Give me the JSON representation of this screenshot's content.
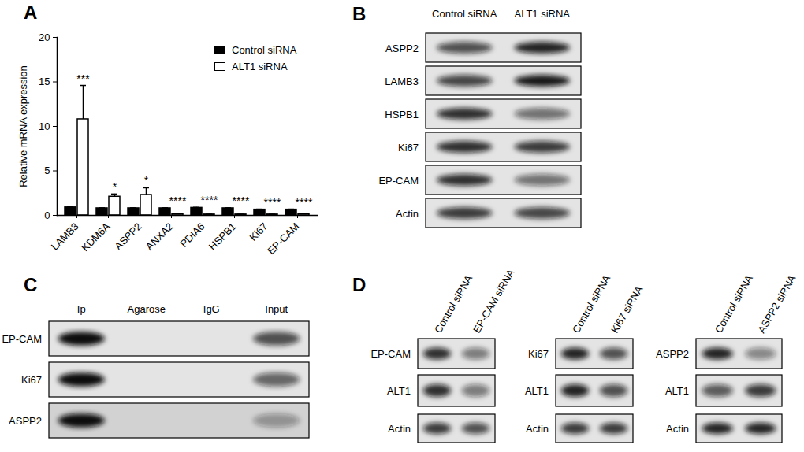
{
  "chart_data": {
    "type": "bar",
    "title": "A",
    "categories": [
      "LAMB3",
      "KDM6A",
      "ASPP2",
      "ANXA2",
      "PDIA6",
      "HSPB1",
      "Ki67",
      "EP-CAM"
    ],
    "series": [
      {
        "name": "Control siRNA",
        "color": "#000000",
        "values": [
          0.9,
          0.8,
          0.8,
          0.8,
          0.85,
          0.8,
          0.65,
          0.65
        ],
        "errors": [
          0.05,
          0.05,
          0.05,
          0.05,
          0.05,
          0.05,
          0.05,
          0.05
        ]
      },
      {
        "name": "ALT1 siRNA",
        "color": "#ffffff",
        "values": [
          10.8,
          2.1,
          2.3,
          0.15,
          0.1,
          0.1,
          0.1,
          0.15
        ],
        "errors": [
          3.8,
          0.3,
          0.8,
          0.03,
          0.02,
          0.02,
          0.02,
          0.03
        ]
      }
    ],
    "annotations": [
      "***",
      "*",
      "*",
      "****",
      "****",
      "****",
      "****",
      "****"
    ],
    "y_label": "Relative mRNA expression",
    "ylim": [
      0,
      20
    ],
    "yticks": [
      0,
      5,
      10,
      15,
      20
    ],
    "legend": "top-right"
  },
  "blots": {
    "B": {
      "panel": "B",
      "lanes": [
        "Control siRNA",
        "ALT1 siRNA"
      ],
      "rows": [
        {
          "label": "ASPP2",
          "bands": [
            0.7,
            0.9
          ]
        },
        {
          "label": "LAMB3",
          "bands": [
            0.75,
            0.95
          ]
        },
        {
          "label": "HSPB1",
          "bands": [
            0.85,
            0.55
          ]
        },
        {
          "label": "Ki67",
          "bands": [
            0.85,
            0.8
          ]
        },
        {
          "label": "EP-CAM",
          "bands": [
            0.85,
            0.55
          ]
        },
        {
          "label": "Actin",
          "bands": [
            0.8,
            0.75
          ]
        }
      ]
    },
    "C": {
      "panel": "C",
      "lanes": [
        "Ip",
        "Agarose",
        "IgG",
        "Input"
      ],
      "rows": [
        {
          "label": "EP-CAM",
          "bands": [
            1.0,
            0.0,
            0.0,
            0.7
          ]
        },
        {
          "label": "Ki67",
          "bands": [
            1.0,
            0.0,
            0.0,
            0.6
          ]
        },
        {
          "label": "ASPP2",
          "bands": [
            1.0,
            0.0,
            0.0,
            0.35
          ]
        }
      ]
    },
    "D": {
      "panel": "D",
      "groups": [
        {
          "lanes": [
            "Control siRNA",
            "EP-CAM siRNA"
          ],
          "rows": [
            {
              "label": "EP-CAM",
              "bands": [
                0.85,
                0.5
              ]
            },
            {
              "label": "ALT1",
              "bands": [
                0.85,
                0.5
              ]
            },
            {
              "label": "Actin",
              "bands": [
                0.8,
                0.7
              ]
            }
          ]
        },
        {
          "lanes": [
            "Control siRNA",
            "Ki67 siRNA"
          ],
          "rows": [
            {
              "label": "Ki67",
              "bands": [
                0.9,
                0.7
              ]
            },
            {
              "label": "ALT1",
              "bands": [
                0.9,
                0.7
              ]
            },
            {
              "label": "Actin",
              "bands": [
                0.8,
                0.8
              ]
            }
          ]
        },
        {
          "lanes": [
            "Control siRNA",
            "ASPP2 siRNA"
          ],
          "rows": [
            {
              "label": "ASPP2",
              "bands": [
                0.9,
                0.45
              ]
            },
            {
              "label": "ALT1",
              "bands": [
                0.65,
                0.8
              ]
            },
            {
              "label": "Actin",
              "bands": [
                0.9,
                0.9
              ]
            }
          ]
        }
      ]
    }
  }
}
